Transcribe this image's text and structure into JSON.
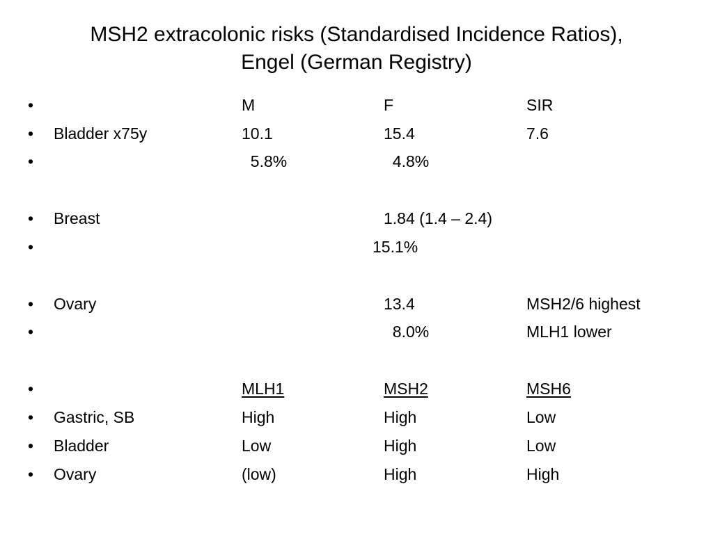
{
  "title": {
    "line1": "MSH2 extracolonic risks (Standardised Incidence Ratios),",
    "line2": "Engel (German Registry)"
  },
  "bullet_char": "•",
  "rows": [
    {
      "c0": "",
      "c1": "M",
      "c2": "F",
      "c3": "SIR"
    },
    {
      "c0": "Bladder x75y",
      "c1": "10.1",
      "c2": "15.4",
      "c3": "7.6"
    },
    {
      "c0": "",
      "c1": "  5.8%",
      "c2": "  4.8%",
      "c3": ""
    },
    {
      "c0": "Breast",
      "c1": "",
      "c2": "1.84 (1.4 – 2.4)",
      "c3": ""
    },
    {
      "c0": "",
      "c1": "",
      "c2": "15.1%",
      "c3": ""
    },
    {
      "c0": "Ovary",
      "c1": "",
      "c2": "13.4",
      "c3": "MSH2/6 highest"
    },
    {
      "c0": "",
      "c1": "",
      "c2": "  8.0%",
      "c3": "MLH1 lower"
    },
    {
      "c0": "",
      "c1": "MLH1",
      "c2": "MSH2",
      "c3": "MSH6"
    },
    {
      "c0": "Gastric, SB",
      "c1": "High",
      "c2": "High",
      "c3": "Low"
    },
    {
      "c0": "Bladder",
      "c1": "Low",
      "c2": "High",
      "c3": "Low"
    },
    {
      "c0": "Ovary",
      "c1": "(low)",
      "c2": "High",
      "c3": "High"
    }
  ]
}
